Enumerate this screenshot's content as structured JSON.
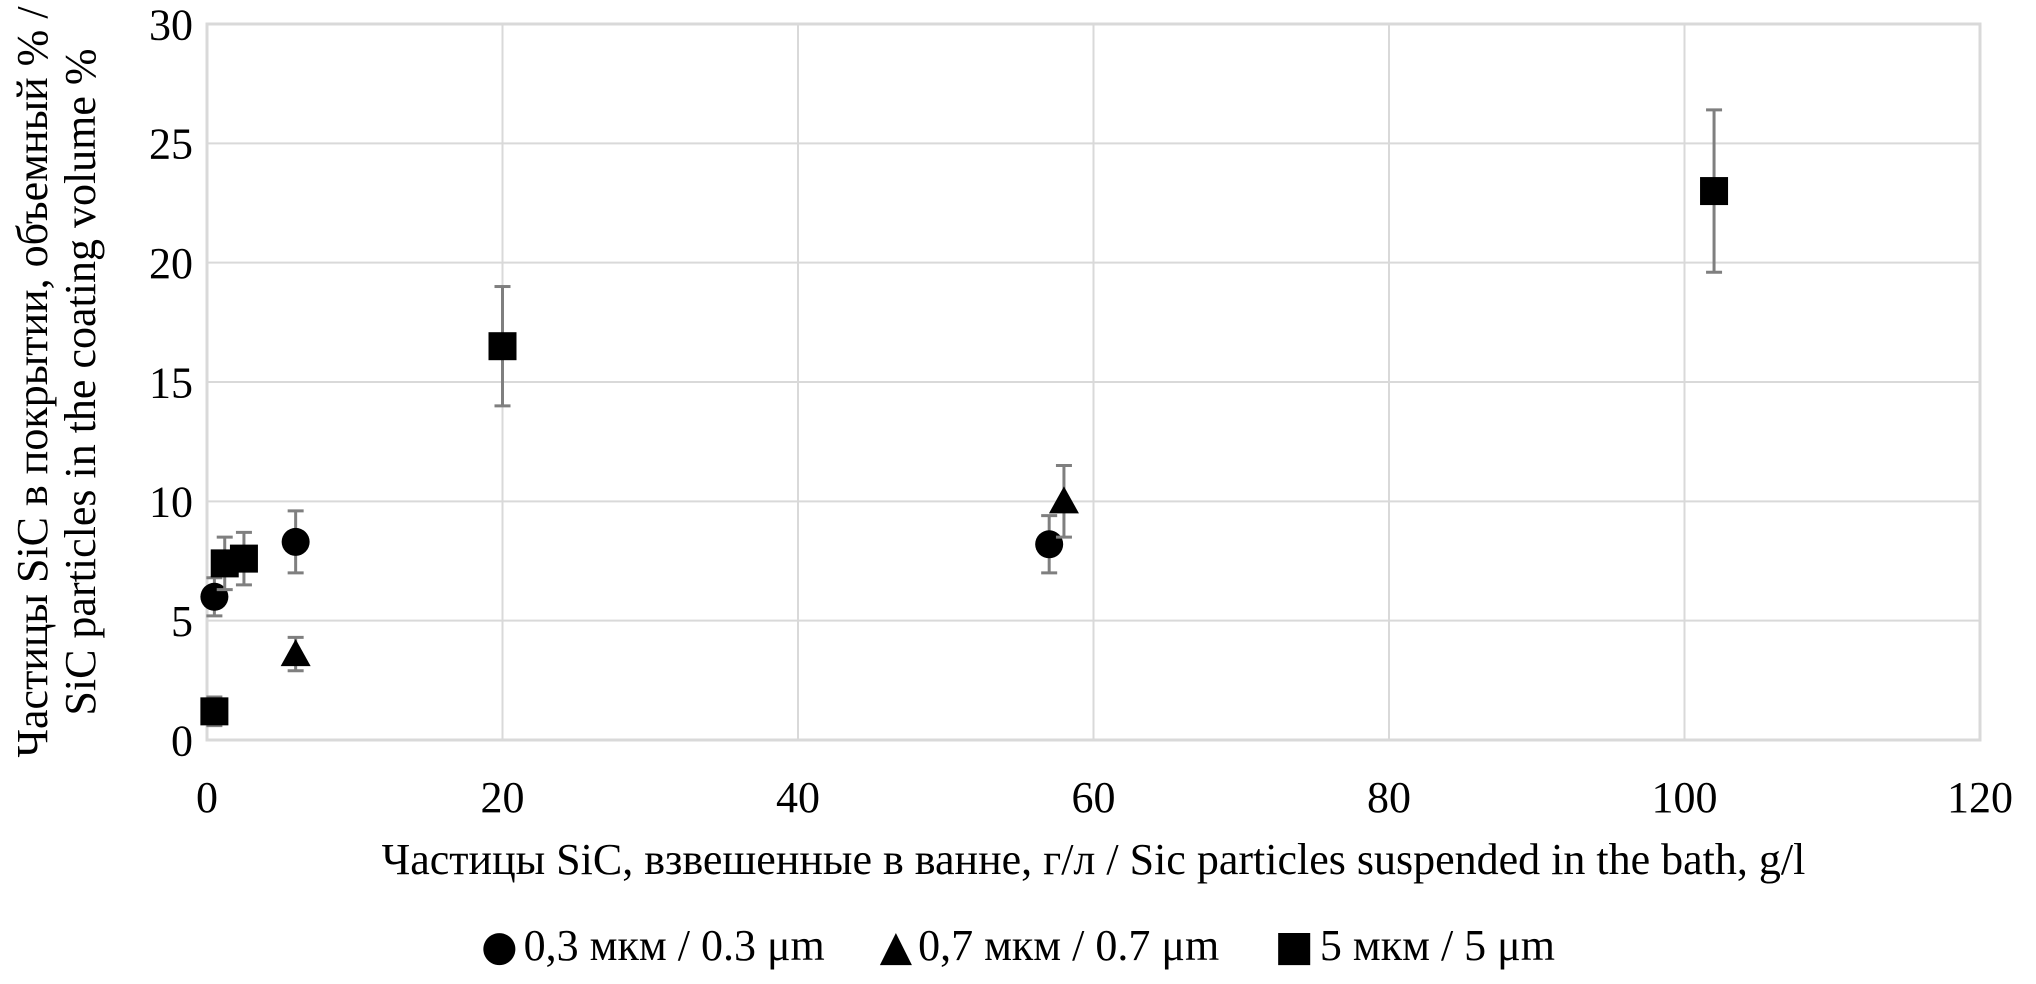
{
  "chart_data": {
    "type": "scatter",
    "title": "",
    "xlabel": "Частицы SiC, взвешенные в ванне, г/л / Sic particles suspended in the bath, g/l",
    "ylabel_line1": "Частицы SiC в покрытии, объемный % /",
    "ylabel_line2": "SiC particles in the coating volume %",
    "xlim": [
      0,
      120
    ],
    "ylim": [
      0,
      30
    ],
    "x_ticks": [
      0,
      20,
      40,
      60,
      80,
      100,
      120
    ],
    "y_ticks": [
      0,
      5,
      10,
      15,
      20,
      25,
      30
    ],
    "grid": true,
    "legend_position": "bottom-center",
    "colors": {
      "marker": "#000000",
      "error_bar": "#7F7F7F",
      "grid": "#D9D9D9",
      "text": "#000000",
      "background": "#FFFFFF"
    },
    "series": [
      {
        "name": "0,3 мкм / 0.3 μm",
        "marker": "circle",
        "points": [
          {
            "x": 0.5,
            "y": 6.0,
            "err": 0.8
          },
          {
            "x": 6,
            "y": 8.3,
            "err": 1.3
          },
          {
            "x": 57,
            "y": 8.2,
            "err": 1.2
          }
        ]
      },
      {
        "name": "0,7 мкм / 0.7 μm",
        "marker": "triangle",
        "points": [
          {
            "x": 6,
            "y": 3.6,
            "err": 0.7
          },
          {
            "x": 58,
            "y": 10.0,
            "err": 1.5
          }
        ]
      },
      {
        "name": "5 мкм / 5 μm",
        "marker": "square",
        "points": [
          {
            "x": 0.5,
            "y": 1.2,
            "err": 0.6
          },
          {
            "x": 1.2,
            "y": 7.4,
            "err": 1.1
          },
          {
            "x": 2.5,
            "y": 7.6,
            "err": 1.1
          },
          {
            "x": 20,
            "y": 16.5,
            "err": 2.5
          },
          {
            "x": 102,
            "y": 23.0,
            "err": 3.4
          }
        ]
      }
    ]
  },
  "legend_glyphs": {
    "circle": "●",
    "triangle": "▲",
    "square": "■"
  }
}
